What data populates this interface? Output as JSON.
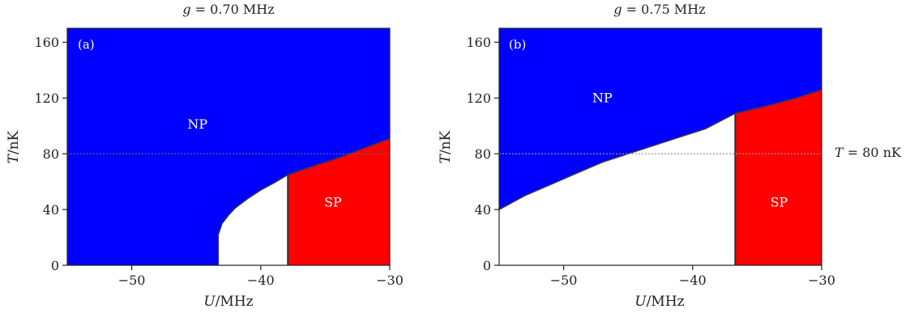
{
  "chart_data": [
    {
      "type": "area",
      "panel_label": "(a)",
      "title": "g = 0.70 MHz",
      "xlabel": "U/MHz",
      "ylabel": "T/nK",
      "xlim": [
        -55,
        -30
      ],
      "ylim": [
        0,
        170
      ],
      "xticks": [
        -50,
        -40,
        -30
      ],
      "yticks": [
        0,
        40,
        80,
        120,
        160
      ],
      "reference_line_T": 80,
      "region_labels": {
        "np": "NP",
        "sp": "SP"
      },
      "region_label_positions": {
        "np": {
          "x": -44.9,
          "y": 98
        },
        "sp": {
          "x": -34.4,
          "y": 42
        }
      },
      "colors": {
        "np": "#0000ff",
        "sp": "#ff0000",
        "gap": "#ffffff",
        "reference": "#666666"
      },
      "sp_boundary_U": -37.9,
      "boundary_curve": {
        "x": [
          -43.3,
          -43.3,
          -43.3,
          -43.0,
          -42.5,
          -42.0,
          -41.0,
          -40.0,
          -39.0,
          -37.9,
          -36.0,
          -34.0,
          -32.0,
          -30.0
        ],
        "y": [
          0,
          10,
          22,
          30,
          36,
          41,
          48,
          54,
          59,
          65,
          71,
          77,
          84,
          91
        ]
      }
    },
    {
      "type": "area",
      "panel_label": "(b)",
      "title": "g = 0.75 MHz",
      "xlabel": "U/MHz",
      "ylabel": "T/nK",
      "xlim": [
        -55,
        -30
      ],
      "ylim": [
        0,
        170
      ],
      "xticks": [
        -50,
        -40,
        -30
      ],
      "yticks": [
        0,
        40,
        80,
        120,
        160
      ],
      "reference_line_T": 80,
      "reference_label": "T = 80 nK",
      "region_labels": {
        "np": "NP",
        "sp": "SP"
      },
      "region_label_positions": {
        "np": {
          "x": -47.0,
          "y": 117
        },
        "sp": {
          "x": -33.3,
          "y": 42
        }
      },
      "colors": {
        "np": "#0000ff",
        "sp": "#ff0000",
        "gap": "#ffffff",
        "reference": "#999999"
      },
      "sp_boundary_U": -36.7,
      "boundary_curve": {
        "x": [
          -55.0,
          -53.0,
          -51.0,
          -49.0,
          -47.0,
          -45.0,
          -43.0,
          -41.0,
          -39.0,
          -36.7,
          -34.0,
          -32.0,
          -30.0
        ],
        "y": [
          40,
          50,
          58,
          66,
          74,
          80,
          86,
          92,
          98,
          109,
          115,
          120,
          126
        ]
      }
    }
  ]
}
